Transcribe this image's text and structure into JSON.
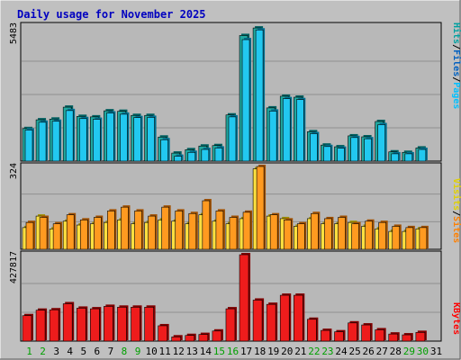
{
  "colors": {
    "background": "#c0c0c0",
    "plot_background": "#b8b8b8",
    "title": "#0000c0",
    "hits": "#00c0c0",
    "hits_bar": "#33ddff",
    "hits_shadow": "#007070",
    "files": "#0060c0",
    "files_bar": "#22c8f0",
    "files_shadow": "#005080",
    "pages": "#00c0ff",
    "sites": "#ff8000",
    "sites_bar": "#ff9a20",
    "visits": "#ffff00",
    "visits_bar": "#ffe040",
    "kbytes": "#ff0000",
    "weekend_label": "#00a000",
    "weekday_label": "#000000"
  },
  "chart_data": {
    "type": "bar",
    "title": "Daily usage for November 2025",
    "categories": [
      "1",
      "2",
      "3",
      "4",
      "5",
      "6",
      "7",
      "8",
      "9",
      "10",
      "11",
      "12",
      "13",
      "14",
      "15",
      "16",
      "17",
      "18",
      "19",
      "20",
      "21",
      "22",
      "23",
      "24",
      "25",
      "26",
      "27",
      "28",
      "29",
      "30",
      "31"
    ],
    "weekend_days": [
      "1",
      "2",
      "8",
      "9",
      "15",
      "16",
      "22",
      "23",
      "29",
      "30"
    ],
    "panels": [
      {
        "name": "hits-files-pages",
        "max_label": "5483",
        "ymax": 5483,
        "legend": [
          "Pages",
          "/",
          "Files",
          "/",
          "Hits"
        ],
        "series": [
          {
            "name": "Hits",
            "values": [
              1340,
              1700,
              1730,
              2220,
              1840,
              1820,
              2070,
              2050,
              1880,
              1880,
              990,
              330,
              470,
              620,
              640,
              1900,
              5170,
              5480,
              2190,
              2670,
              2630,
              1210,
              660,
              590,
              1040,
              1000,
              1630,
              380,
              360,
              540,
              0
            ]
          },
          {
            "name": "Files",
            "values": [
              1280,
              1600,
              1640,
              2080,
              1750,
              1720,
              1980,
              1930,
              1790,
              1800,
              880,
              200,
              360,
              480,
              540,
              1820,
              5000,
              5400,
              2060,
              2570,
              2530,
              1130,
              600,
              530,
              970,
              920,
              1500,
              300,
              300,
              480,
              0
            ]
          }
        ]
      },
      {
        "name": "visits-sites",
        "max_label": "324",
        "ymax": 324,
        "legend": [
          "Sites",
          "/",
          "Visits"
        ],
        "series": [
          {
            "name": "Visits",
            "values": [
              85,
              130,
              80,
              110,
              95,
              100,
              105,
              115,
              100,
              105,
              115,
              110,
              100,
              135,
              110,
              100,
              120,
              315,
              130,
              120,
              90,
              120,
              100,
              100,
              105,
              90,
              80,
              70,
              70,
              80,
              0
            ]
          },
          {
            "name": "Sites",
            "values": [
              105,
              125,
              100,
              135,
              115,
              125,
              150,
              165,
              150,
              130,
              165,
              150,
              140,
              190,
              150,
              125,
              145,
              324,
              135,
              115,
              100,
              140,
              120,
              125,
              100,
              110,
              105,
              90,
              85,
              85,
              0
            ]
          }
        ]
      },
      {
        "name": "kbytes",
        "max_label": "427817",
        "ymax": 427817,
        "legend": [
          "KBytes"
        ],
        "series": [
          {
            "name": "KBytes",
            "values": [
              126000,
              153000,
              155000,
              185000,
              163000,
              160000,
              172000,
              168000,
              168000,
              168000,
              76000,
              21000,
              28000,
              33000,
              50000,
              160000,
              427817,
              203000,
              182000,
              227000,
              227000,
              108000,
              53000,
              46000,
              90000,
              80000,
              56000,
              35000,
              31000,
              43000,
              0
            ]
          }
        ]
      }
    ]
  }
}
